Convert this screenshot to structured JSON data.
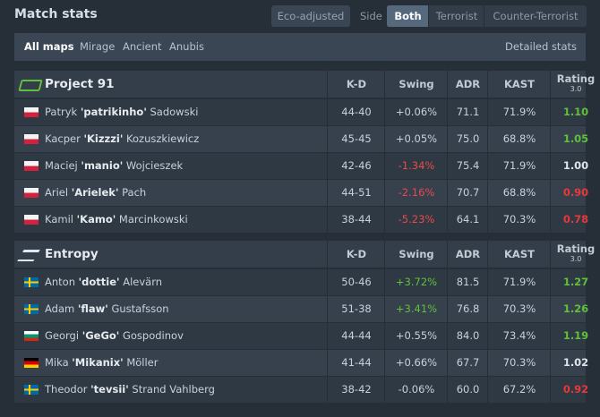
{
  "header": {
    "title": "Match stats",
    "eco_button": "Eco-adjusted",
    "side_label": "Side",
    "side_options": [
      "Both",
      "Terrorist",
      "Counter-Terrorist"
    ]
  },
  "maps": {
    "tabs": [
      "All maps",
      "Mirage",
      "Ancient",
      "Anubis"
    ],
    "detailed": "Detailed stats"
  },
  "teams": [
    {
      "name": "Project 91",
      "columns": [
        "K-D",
        "Swing",
        "ADR",
        "KAST",
        "Rating"
      ],
      "rating_version": "3.0",
      "players": [
        {
          "first": "Patryk",
          "nick": "'patrikinho'",
          "last": "Sadowski",
          "kd": "44-40",
          "swing": "+0.06%",
          "adr": "71.1",
          "kast": "71.9%",
          "rating": "1.10"
        },
        {
          "first": "Kacper",
          "nick": "'Kizzzi'",
          "last": "Kozuszkiewicz",
          "kd": "45-45",
          "swing": "+0.05%",
          "adr": "75.0",
          "kast": "68.8%",
          "rating": "1.05"
        },
        {
          "first": "Maciej",
          "nick": "'manio'",
          "last": "Wojcieszek",
          "kd": "42-46",
          "swing": "-1.34%",
          "adr": "75.4",
          "kast": "71.9%",
          "rating": "1.00"
        },
        {
          "first": "Ariel",
          "nick": "'Arielek'",
          "last": "Pach",
          "kd": "44-51",
          "swing": "-2.16%",
          "adr": "70.7",
          "kast": "68.8%",
          "rating": "0.90"
        },
        {
          "first": "Kamil",
          "nick": "'Kamo'",
          "last": "Marcinkowski",
          "kd": "38-44",
          "swing": "-5.23%",
          "adr": "64.1",
          "kast": "70.3%",
          "rating": "0.78"
        }
      ]
    },
    {
      "name": "Entropy",
      "columns": [
        "K-D",
        "Swing",
        "ADR",
        "KAST",
        "Rating"
      ],
      "rating_version": "3.0",
      "players": [
        {
          "first": "Anton",
          "nick": "'dottie'",
          "last": "Alevärn",
          "kd": "50-46",
          "swing": "+3.72%",
          "adr": "81.5",
          "kast": "71.9%",
          "rating": "1.27"
        },
        {
          "first": "Adam",
          "nick": "'flaw'",
          "last": "Gustafsson",
          "kd": "51-38",
          "swing": "+3.41%",
          "adr": "76.8",
          "kast": "70.3%",
          "rating": "1.26"
        },
        {
          "first": "Georgi",
          "nick": "'GeGo'",
          "last": "Gospodinov",
          "kd": "44-44",
          "swing": "+0.55%",
          "adr": "84.0",
          "kast": "73.4%",
          "rating": "1.19"
        },
        {
          "first": "Mika",
          "nick": "'Mikanix'",
          "last": "Möller",
          "kd": "41-44",
          "swing": "+0.66%",
          "adr": "67.7",
          "kast": "70.3%",
          "rating": "1.02"
        },
        {
          "first": "Theodor",
          "nick": "'tevsii'",
          "last": "Strand Vahlberg",
          "kd": "38-42",
          "swing": "-0.06%",
          "adr": "60.0",
          "kast": "67.2%",
          "rating": "0.92"
        }
      ]
    }
  ]
}
